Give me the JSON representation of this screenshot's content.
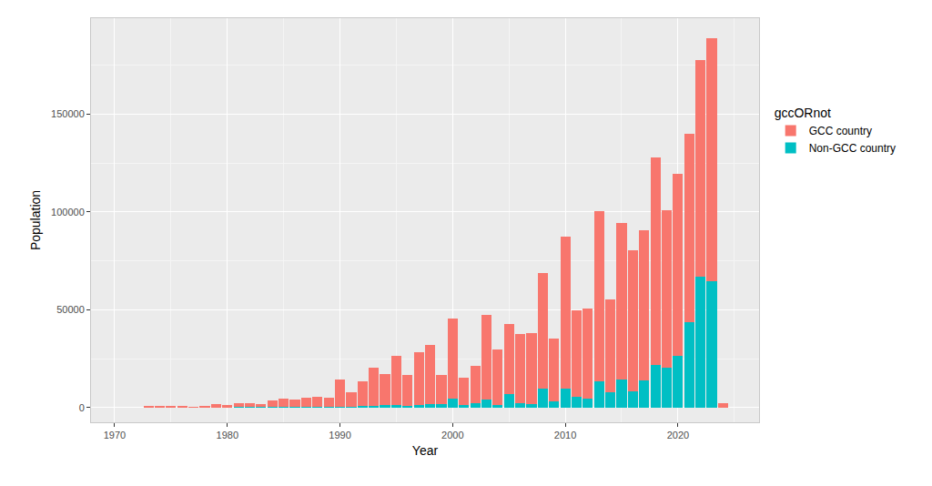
{
  "chart_data": {
    "type": "bar",
    "stacked": true,
    "x_label": "Year",
    "y_label": "Population",
    "legend_title": "gccORnot",
    "legend": "right",
    "grid": true,
    "x": [
      1973,
      1974,
      1975,
      1976,
      1977,
      1978,
      1979,
      1980,
      1981,
      1982,
      1983,
      1984,
      1985,
      1986,
      1987,
      1988,
      1989,
      1990,
      1991,
      1992,
      1993,
      1994,
      1995,
      1996,
      1997,
      1998,
      1999,
      2000,
      2001,
      2002,
      2003,
      2004,
      2005,
      2006,
      2007,
      2008,
      2009,
      2010,
      2011,
      2012,
      2013,
      2014,
      2015,
      2016,
      2017,
      2018,
      2019,
      2020,
      2021,
      2022,
      2023,
      2024
    ],
    "series": [
      {
        "name": "GCC country",
        "color": "#F8766D",
        "values": [
          500,
          600,
          700,
          800,
          300,
          800,
          1700,
          900,
          2300,
          2000,
          1600,
          3300,
          4300,
          4000,
          4800,
          5300,
          4800,
          14000,
          7700,
          12700,
          19800,
          15800,
          25000,
          15500,
          27000,
          30000,
          14700,
          41000,
          14000,
          19000,
          43500,
          28000,
          35500,
          35000,
          36000,
          59500,
          32500,
          78000,
          44000,
          46000,
          87000,
          47500,
          80000,
          72000,
          76500,
          106000,
          80500,
          93000,
          96500,
          110500,
          124500,
          2500
        ]
      },
      {
        "name": "Non-GCC country",
        "color": "#00BFC4",
        "values": [
          0,
          0,
          0,
          0,
          0,
          0,
          100,
          300,
          200,
          200,
          200,
          200,
          200,
          200,
          200,
          200,
          200,
          500,
          300,
          800,
          700,
          1200,
          1500,
          1000,
          1500,
          2000,
          1800,
          4500,
          1500,
          2500,
          4000,
          1500,
          7000,
          2500,
          2000,
          9500,
          3000,
          9500,
          5500,
          4500,
          13500,
          8000,
          14500,
          8500,
          14000,
          22000,
          20500,
          26500,
          43500,
          67000,
          64500,
          0
        ]
      }
    ],
    "xlim": [
      1967.9,
      2027.2
    ],
    "xticks": [
      1970,
      1980,
      1990,
      2000,
      2010,
      2020
    ],
    "ylim": [
      -7500,
      199000
    ],
    "yticks": [
      0,
      50000,
      100000,
      150000
    ]
  }
}
